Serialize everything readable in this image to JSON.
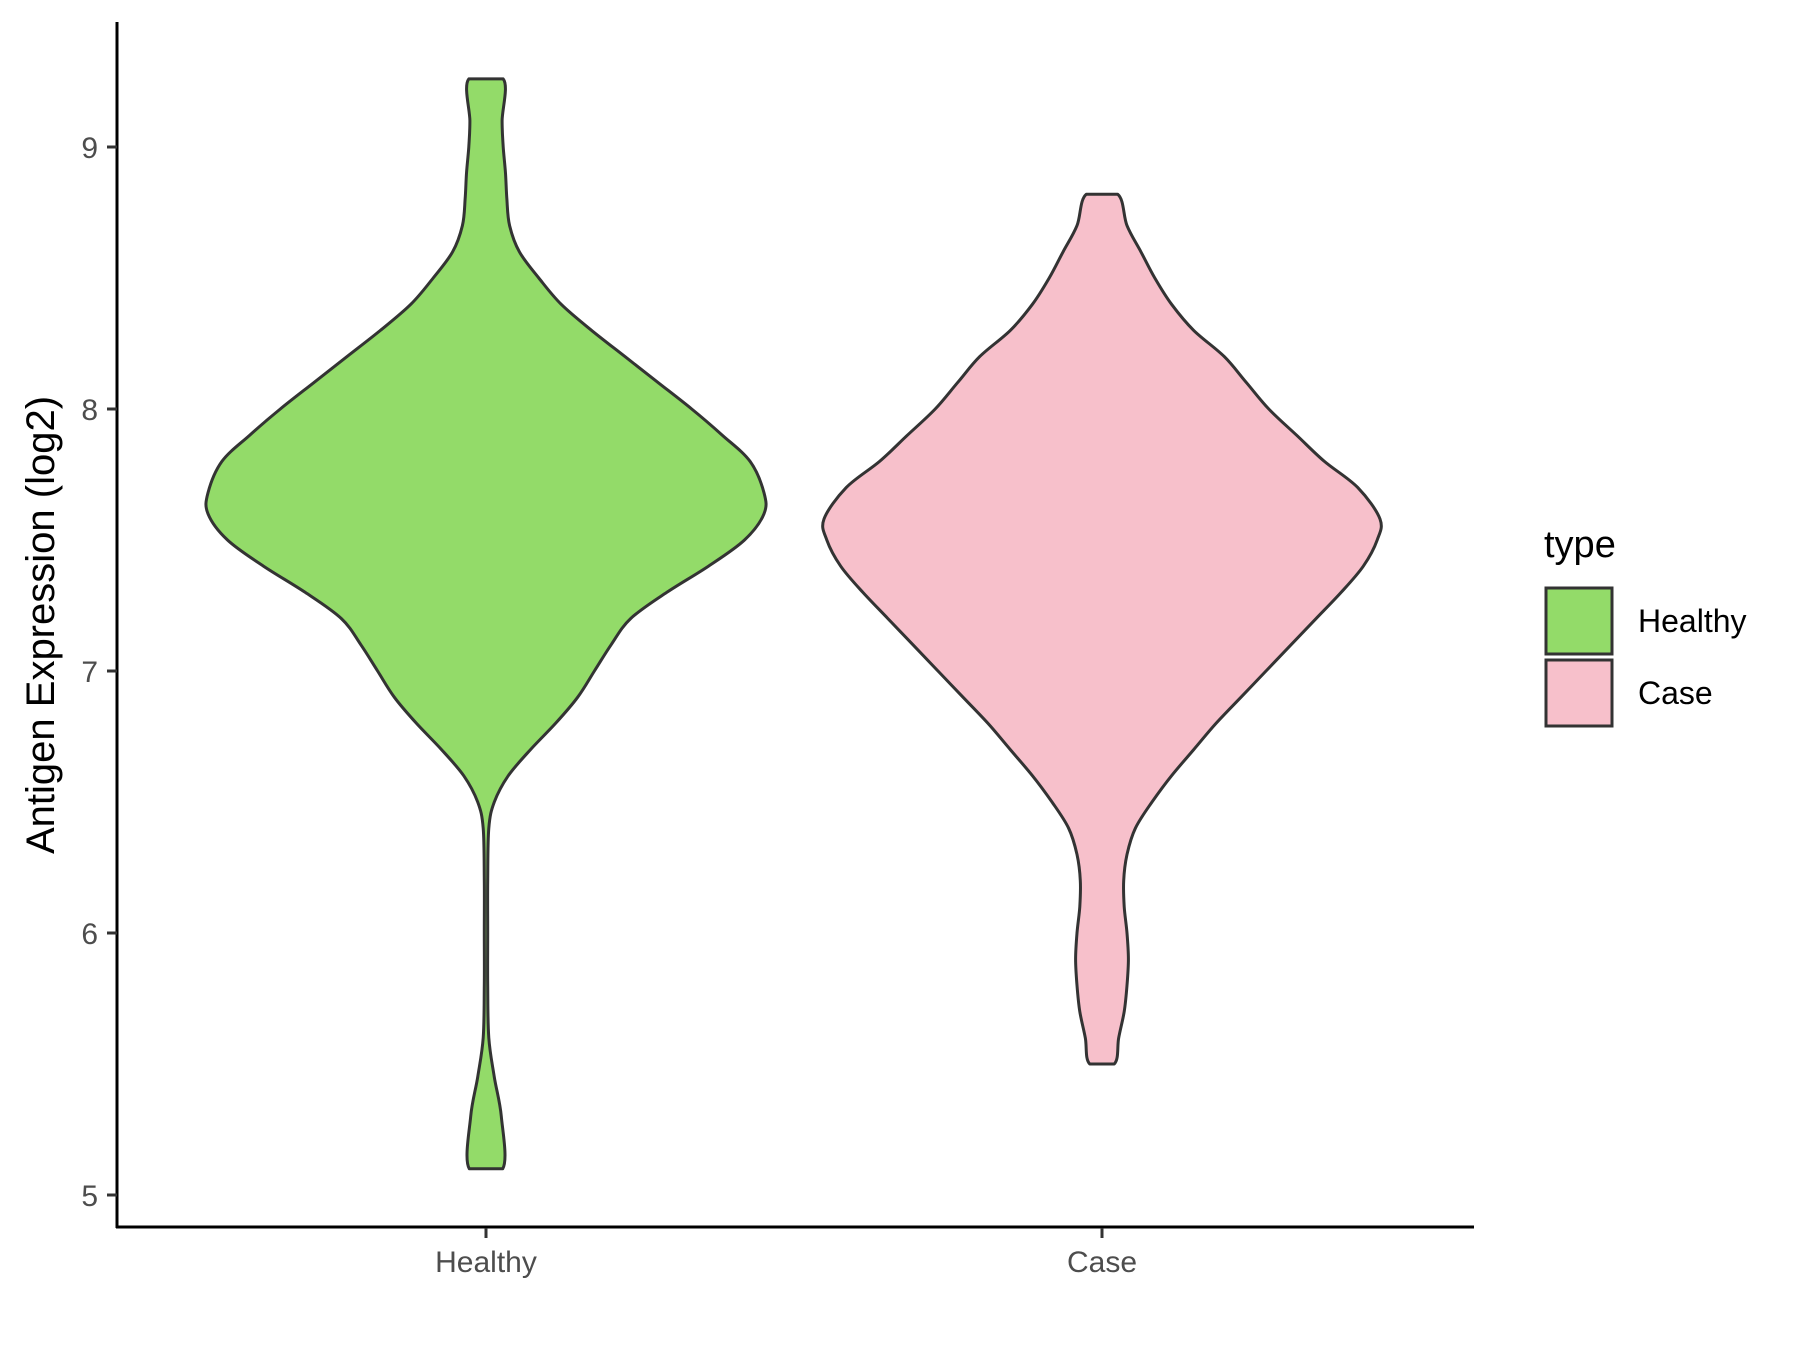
{
  "chart_data": {
    "type": "violin",
    "title": "",
    "xlabel": "",
    "ylabel": "Antigen Expression (log2)",
    "categories": [
      "Healthy",
      "Case"
    ],
    "ylim": [
      4.88,
      9.48
    ],
    "yticks": [
      5,
      6,
      7,
      8,
      9
    ],
    "grid": false,
    "legend": {
      "title": "type",
      "position": "right",
      "entries": [
        {
          "label": "Healthy",
          "color": "#93DB69"
        },
        {
          "label": "Case",
          "color": "#F7C0CB"
        }
      ]
    },
    "series": [
      {
        "name": "Healthy",
        "color": "#93DB69",
        "min": 5.1,
        "max": 9.26,
        "density": [
          [
            5.1,
            0.06
          ],
          [
            5.3,
            0.055
          ],
          [
            5.45,
            0.03
          ],
          [
            5.6,
            0.01
          ],
          [
            5.8,
            0.006
          ],
          [
            6.0,
            0.006
          ],
          [
            6.2,
            0.006
          ],
          [
            6.4,
            0.01
          ],
          [
            6.5,
            0.03
          ],
          [
            6.6,
            0.08
          ],
          [
            6.7,
            0.16
          ],
          [
            6.8,
            0.25
          ],
          [
            6.9,
            0.33
          ],
          [
            7.0,
            0.39
          ],
          [
            7.1,
            0.45
          ],
          [
            7.2,
            0.52
          ],
          [
            7.3,
            0.65
          ],
          [
            7.4,
            0.8
          ],
          [
            7.5,
            0.93
          ],
          [
            7.6,
            1.0
          ],
          [
            7.68,
            1.0
          ],
          [
            7.8,
            0.95
          ],
          [
            7.9,
            0.85
          ],
          [
            8.0,
            0.74
          ],
          [
            8.1,
            0.62
          ],
          [
            8.2,
            0.5
          ],
          [
            8.3,
            0.38
          ],
          [
            8.4,
            0.27
          ],
          [
            8.5,
            0.19
          ],
          [
            8.6,
            0.12
          ],
          [
            8.7,
            0.085
          ],
          [
            8.8,
            0.075
          ],
          [
            8.9,
            0.07
          ],
          [
            9.0,
            0.062
          ],
          [
            9.1,
            0.058
          ],
          [
            9.26,
            0.062
          ]
        ]
      },
      {
        "name": "Case",
        "color": "#F7C0CB",
        "min": 5.5,
        "max": 8.82,
        "density": [
          [
            5.5,
            0.044
          ],
          [
            5.6,
            0.06
          ],
          [
            5.7,
            0.08
          ],
          [
            5.8,
            0.09
          ],
          [
            5.9,
            0.095
          ],
          [
            6.0,
            0.09
          ],
          [
            6.1,
            0.08
          ],
          [
            6.2,
            0.078
          ],
          [
            6.3,
            0.09
          ],
          [
            6.4,
            0.12
          ],
          [
            6.5,
            0.18
          ],
          [
            6.6,
            0.25
          ],
          [
            6.7,
            0.33
          ],
          [
            6.8,
            0.41
          ],
          [
            6.9,
            0.5
          ],
          [
            7.0,
            0.59
          ],
          [
            7.1,
            0.68
          ],
          [
            7.2,
            0.77
          ],
          [
            7.3,
            0.86
          ],
          [
            7.4,
            0.94
          ],
          [
            7.5,
            0.99
          ],
          [
            7.58,
            1.0
          ],
          [
            7.7,
            0.92
          ],
          [
            7.8,
            0.8
          ],
          [
            7.9,
            0.7
          ],
          [
            8.0,
            0.6
          ],
          [
            8.1,
            0.52
          ],
          [
            8.2,
            0.44
          ],
          [
            8.3,
            0.33
          ],
          [
            8.4,
            0.25
          ],
          [
            8.5,
            0.19
          ],
          [
            8.6,
            0.14
          ],
          [
            8.7,
            0.09
          ],
          [
            8.82,
            0.056
          ]
        ]
      }
    ]
  }
}
